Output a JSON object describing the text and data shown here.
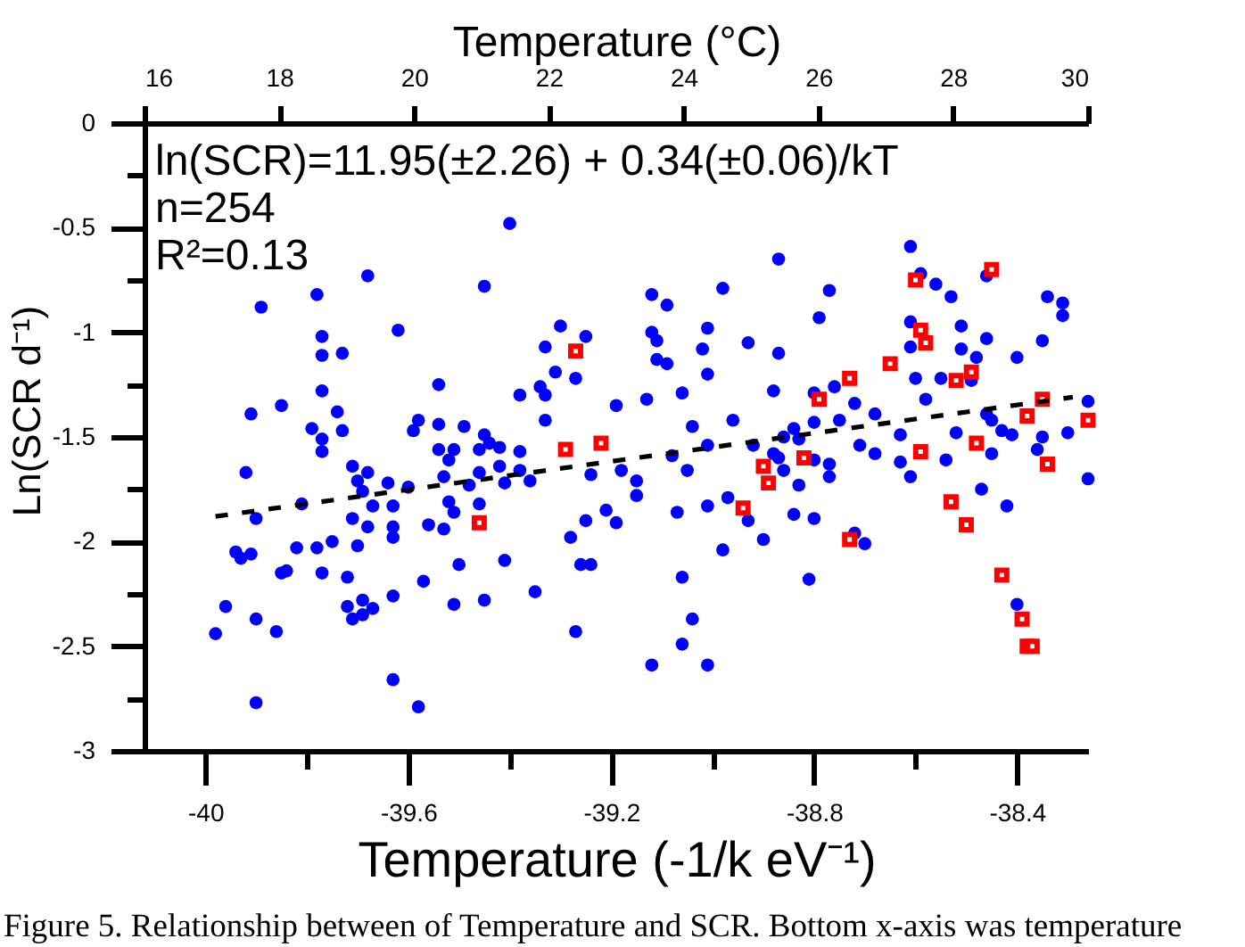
{
  "chart_data": {
    "type": "scatter",
    "xlabel": "Temperature (-1/k eV⁻¹)",
    "ylabel": "Ln(SCR d⁻¹)",
    "x2label": "Temperature (°C)",
    "xlim": [
      -40.12,
      -38.26
    ],
    "xticks": [
      -40,
      {
        "value": -39.8,
        "label": null
      },
      -39.6,
      {
        "value": -39.4,
        "label": null
      },
      -39.2,
      {
        "value": -39,
        "label": null
      },
      -38.8,
      {
        "value": -38.6,
        "label": null
      },
      -38.4
    ],
    "x2lim": [
      16,
      30
    ],
    "x2ticks": [
      16,
      18,
      20,
      22,
      24,
      26,
      28,
      30
    ],
    "ylim": [
      -3,
      0
    ],
    "yticks": [
      0,
      {
        "value": -0.25,
        "label": null
      },
      -0.5,
      {
        "value": -0.75,
        "label": null
      },
      -1,
      {
        "value": -1.25,
        "label": null
      },
      -1.5,
      {
        "value": -1.75,
        "label": null
      },
      -2,
      {
        "value": -2.25,
        "label": null
      },
      -2.5,
      {
        "value": -2.75,
        "label": null
      },
      -3
    ],
    "annotations": [
      "ln(SCR)=11.95(±2.26) + 0.34(±0.06)/kT",
      "n=254",
      "R²=0.13",
      "Figure 5. Relationship between of Temperature and SCR. Bottom x-axis was temperature"
    ],
    "series": [
      {
        "color": "#0000ff",
        "marker": "circle",
        "x": [
          -39.4,
          -39.68,
          -39.45,
          -39.89,
          -39.78,
          -39.62,
          -39.77,
          -39.77,
          -39.73,
          -39.12,
          -39.09,
          -39.3,
          -39.33,
          -39.25,
          -39.12,
          -39.11,
          -39.01,
          -39.02,
          -39.11,
          -39.09,
          -39.31,
          -39.27,
          -39.01,
          -39.54,
          -39.85,
          -39.91,
          -39.77,
          -39.74,
          -39.38,
          -39.34,
          -39.33,
          -39.19,
          -39.13,
          -39.06,
          -39.79,
          -39.73,
          -39.77,
          -39.77,
          -39.58,
          -39.59,
          -39.54,
          -39.49,
          -39.33,
          -39.04,
          -39.54,
          -39.51,
          -39.52,
          -39.45,
          -39.44,
          -39.46,
          -39.42,
          -39.38,
          -39.01,
          -39.71,
          -39.68,
          -39.7,
          -39.92,
          -39.53,
          -39.48,
          -39.46,
          -39.42,
          -39.38,
          -39.41,
          -39.36,
          -39.24,
          -39.18,
          -39.15,
          -39.05,
          -39.08,
          -39.64,
          -39.6,
          -39.69,
          -39.81,
          -39.9,
          -39.52,
          -39.46,
          -39.67,
          -39.63,
          -39.71,
          -39.68,
          -39.63,
          -39.63,
          -39.56,
          -39.53,
          -39.51,
          -39.25,
          -39.21,
          -39.19,
          -39.15,
          -39.28,
          -39.07,
          -39.01,
          -39.94,
          -39.91,
          -39.93,
          -39.82,
          -39.78,
          -39.75,
          -39.7,
          -39.5,
          -39.41,
          -39.26,
          -39.24,
          -39.85,
          -39.84,
          -39.77,
          -39.72,
          -39.57,
          -39.06,
          -39.35,
          -39.63,
          -39.72,
          -39.69,
          -39.67,
          -39.71,
          -39.69,
          -39.96,
          -39.9,
          -39.98,
          -39.86,
          -39.51,
          -39.45,
          -39.27,
          -39.04,
          -39.06,
          -39.12,
          -39.01,
          -39.63,
          -39.9,
          -39.58,
          -38.61,
          -38.87,
          -38.98,
          -38.77,
          -38.59,
          -38.56,
          -38.53,
          -38.46,
          -38.79,
          -38.93,
          -38.87,
          -38.88,
          -38.61,
          -38.61,
          -38.51,
          -38.46,
          -38.51,
          -38.48,
          -38.4,
          -38.35,
          -38.34,
          -38.31,
          -38.31,
          -38.6,
          -38.55,
          -38.49,
          -38.58,
          -38.8,
          -38.76,
          -38.72,
          -38.96,
          -38.68,
          -38.75,
          -38.8,
          -38.84,
          -38.86,
          -38.83,
          -38.92,
          -38.88,
          -38.87,
          -38.86,
          -38.8,
          -38.77,
          -38.77,
          -38.71,
          -38.68,
          -38.63,
          -38.63,
          -38.61,
          -38.54,
          -38.52,
          -38.46,
          -38.45,
          -38.43,
          -38.41,
          -38.45,
          -38.35,
          -38.36,
          -38.3,
          -38.26,
          -38.26,
          -38.83,
          -38.97,
          -38.93,
          -38.84,
          -38.8,
          -38.9,
          -38.98,
          -38.72,
          -38.7,
          -38.81,
          -38.47,
          -38.42,
          -38.4
        ],
        "values": [
          -0.48,
          -0.73,
          -0.78,
          -0.88,
          -0.82,
          -0.99,
          -1.02,
          -1.11,
          -1.1,
          -0.82,
          -0.87,
          -0.97,
          -1.07,
          -1.02,
          -1.0,
          -1.04,
          -0.98,
          -1.08,
          -1.13,
          -1.15,
          -1.19,
          -1.22,
          -1.2,
          -1.25,
          -1.35,
          -1.39,
          -1.28,
          -1.38,
          -1.3,
          -1.26,
          -1.3,
          -1.35,
          -1.32,
          -1.29,
          -1.46,
          -1.47,
          -1.51,
          -1.57,
          -1.42,
          -1.47,
          -1.44,
          -1.45,
          -1.42,
          -1.45,
          -1.56,
          -1.56,
          -1.61,
          -1.49,
          -1.53,
          -1.56,
          -1.55,
          -1.57,
          -1.54,
          -1.64,
          -1.67,
          -1.71,
          -1.67,
          -1.69,
          -1.73,
          -1.67,
          -1.64,
          -1.66,
          -1.72,
          -1.71,
          -1.68,
          -1.66,
          -1.71,
          -1.66,
          -1.59,
          -1.72,
          -1.74,
          -1.76,
          -1.82,
          -1.89,
          -1.81,
          -1.82,
          -1.83,
          -1.83,
          -1.89,
          -1.93,
          -1.93,
          -1.98,
          -1.92,
          -1.94,
          -1.86,
          -1.9,
          -1.85,
          -1.91,
          -1.78,
          -1.98,
          -1.86,
          -1.83,
          -2.05,
          -2.06,
          -2.08,
          -2.03,
          -2.03,
          -2.0,
          -2.02,
          -2.11,
          -2.09,
          -2.11,
          -2.11,
          -2.15,
          -2.14,
          -2.15,
          -2.17,
          -2.19,
          -2.17,
          -2.24,
          -2.26,
          -2.31,
          -2.28,
          -2.32,
          -2.37,
          -2.35,
          -2.31,
          -2.37,
          -2.44,
          -2.43,
          -2.3,
          -2.28,
          -2.43,
          -2.37,
          -2.49,
          -2.59,
          -2.59,
          -2.66,
          -2.77,
          -2.79,
          -0.59,
          -0.65,
          -0.79,
          -0.8,
          -0.72,
          -0.77,
          -0.83,
          -0.73,
          -0.93,
          -1.05,
          -1.1,
          -1.28,
          -0.95,
          -1.07,
          -0.97,
          -1.03,
          -1.08,
          -1.12,
          -1.12,
          -1.04,
          -0.83,
          -0.86,
          -0.92,
          -1.22,
          -1.22,
          -1.23,
          -1.32,
          -1.29,
          -1.26,
          -1.34,
          -1.42,
          -1.39,
          -1.42,
          -1.43,
          -1.46,
          -1.5,
          -1.51,
          -1.54,
          -1.58,
          -1.6,
          -1.66,
          -1.61,
          -1.63,
          -1.69,
          -1.54,
          -1.58,
          -1.49,
          -1.62,
          -1.69,
          -1.61,
          -1.48,
          -1.39,
          -1.42,
          -1.47,
          -1.49,
          -1.58,
          -1.5,
          -1.56,
          -1.48,
          -1.33,
          -1.7,
          -1.73,
          -1.79,
          -1.9,
          -1.87,
          -1.89,
          -1.99,
          -2.04,
          -1.96,
          -2.01,
          -2.18,
          -1.75,
          -1.83,
          -2.3
        ]
      },
      {
        "color": "#ff0000",
        "marker": "square",
        "x": [
          -39.27,
          -39.29,
          -39.22,
          -39.46,
          -38.6,
          -38.45,
          -38.59,
          -38.58,
          -38.65,
          -38.73,
          -38.49,
          -38.52,
          -38.79,
          -38.35,
          -38.38,
          -38.26,
          -38.48,
          -38.59,
          -38.82,
          -38.9,
          -38.89,
          -38.34,
          -38.94,
          -38.53,
          -38.5,
          -38.73,
          -38.43,
          -38.39,
          -38.38,
          -38.37
        ],
        "values": [
          -1.09,
          -1.56,
          -1.53,
          -1.91,
          -0.75,
          -0.7,
          -0.99,
          -1.05,
          -1.15,
          -1.22,
          -1.19,
          -1.23,
          -1.32,
          -1.32,
          -1.4,
          -1.42,
          -1.53,
          -1.57,
          -1.6,
          -1.64,
          -1.72,
          -1.63,
          -1.84,
          -1.81,
          -1.92,
          -1.99,
          -2.16,
          -2.37,
          -2.5,
          -2.5
        ]
      },
      {
        "type": "line",
        "color": "#000000",
        "line_style": "dashed",
        "x": [
          -39.98,
          -38.29
        ],
        "values": [
          -1.88,
          -1.31
        ]
      }
    ]
  }
}
